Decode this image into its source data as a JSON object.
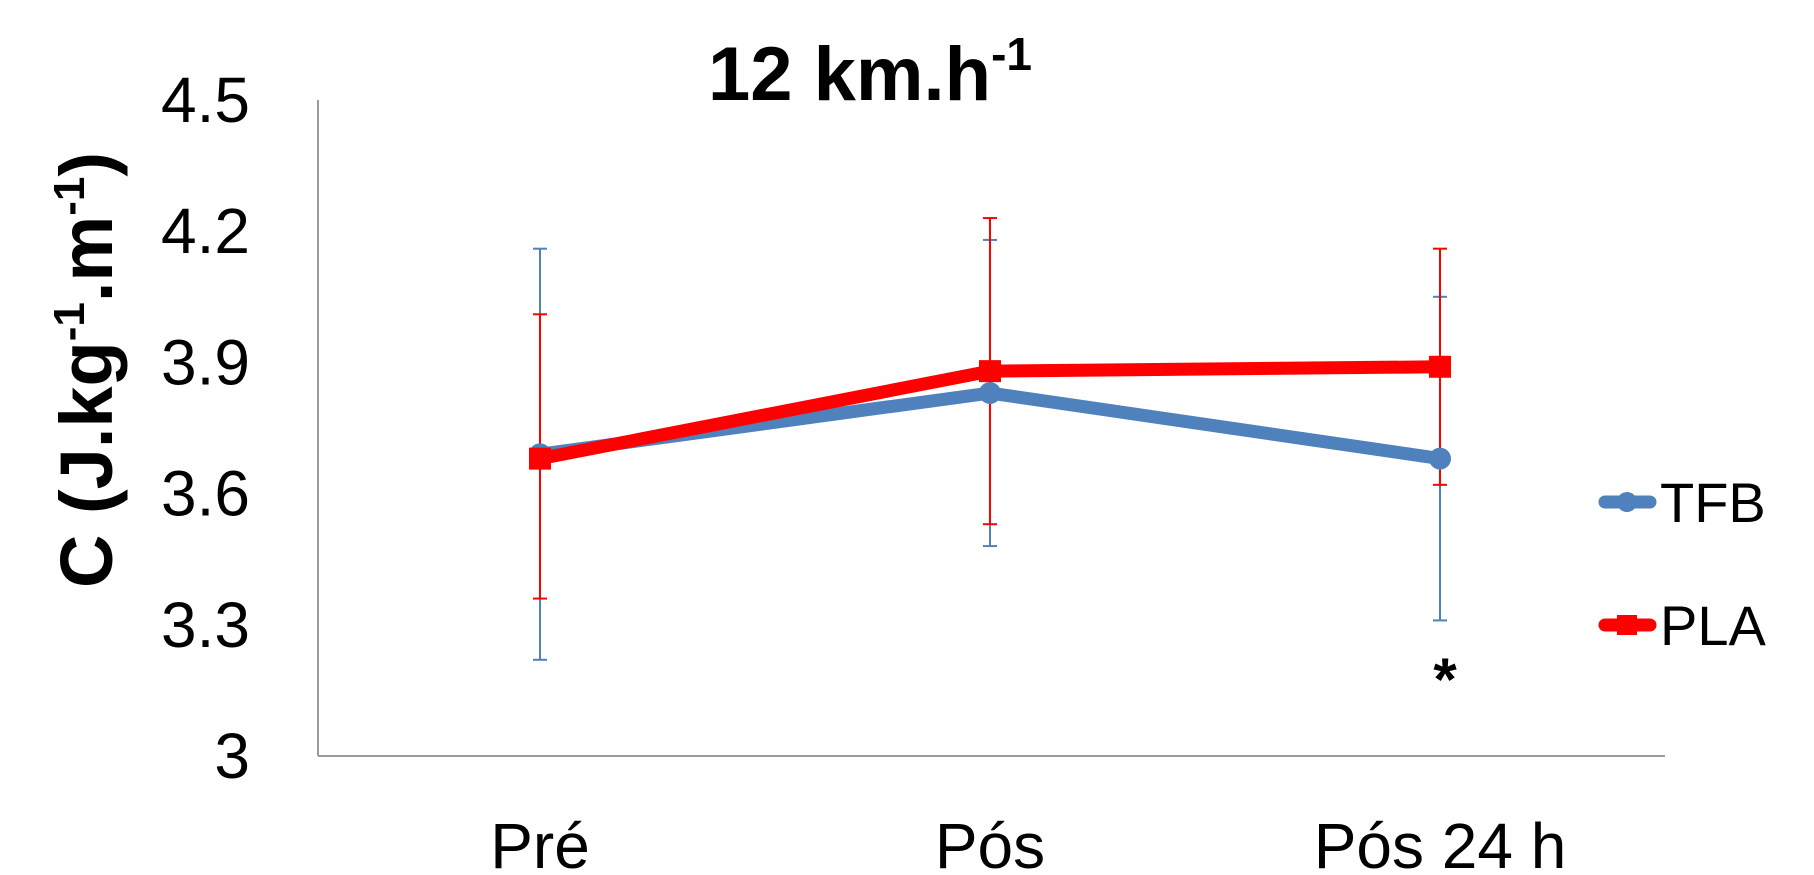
{
  "chart_data": {
    "type": "line",
    "title": "12 km.h",
    "title_superscript": "-1",
    "ylabel": {
      "prefix": "C (J.kg",
      "sup1": "-1",
      "middle": ".m",
      "sup2": "-1",
      "suffix": ")"
    },
    "xlabel": "",
    "categories": [
      "Pré",
      "Pós",
      "Pós 24 h"
    ],
    "ylim": [
      3,
      4.5
    ],
    "yticks": [
      3,
      3.3,
      3.6,
      3.9,
      4.2,
      4.5
    ],
    "ytick_labels": [
      "3",
      "3.3",
      "3.6",
      "3.9",
      "4.2",
      "4.5"
    ],
    "grid": false,
    "legend_position": "right",
    "series": [
      {
        "name": "TFB",
        "color": "#4f81bd",
        "marker": "circle",
        "values": [
          3.69,
          3.83,
          3.68
        ],
        "error_low": [
          3.22,
          3.48,
          3.31
        ],
        "error_high": [
          4.16,
          4.18,
          4.05
        ]
      },
      {
        "name": "PLA",
        "color": "#ff0000",
        "marker": "square",
        "values": [
          3.68,
          3.88,
          3.89
        ],
        "error_low": [
          3.36,
          3.53,
          3.62
        ],
        "error_high": [
          4.01,
          4.23,
          4.16
        ]
      }
    ],
    "annotations": [
      {
        "text": "*",
        "category": "Pós 24 h"
      }
    ]
  }
}
